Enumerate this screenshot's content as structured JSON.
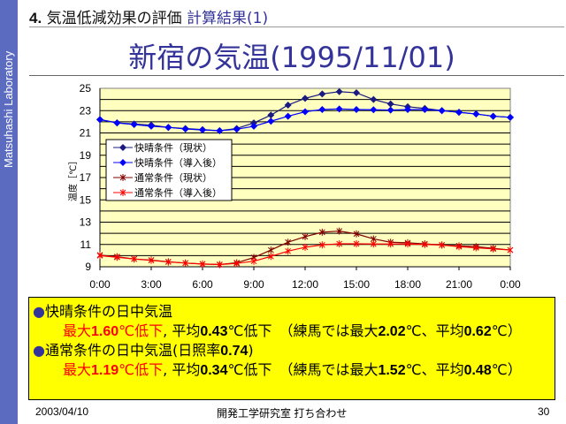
{
  "sidebar": {
    "label": "Matsuhashi Laboratory"
  },
  "header": {
    "number": "4.",
    "section": "気温低減効果の評価",
    "subsection": "計算結果(1)"
  },
  "chart_data": {
    "type": "line",
    "title": "新宿の気温(1995/11/01)",
    "xlabel": "",
    "ylabel": "温度［℃］",
    "ylim": [
      9,
      25
    ],
    "yticks": [
      9,
      11,
      13,
      15,
      17,
      19,
      21,
      23,
      25
    ],
    "xticks": [
      "0:00",
      "3:00",
      "6:00",
      "9:00",
      "12:00",
      "15:00",
      "18:00",
      "21:00",
      "0:00"
    ],
    "x_hours": [
      0,
      1,
      2,
      3,
      4,
      5,
      6,
      7,
      8,
      9,
      10,
      11,
      12,
      13,
      14,
      15,
      16,
      17,
      18,
      19,
      20,
      21,
      22,
      23,
      24
    ],
    "grid": true,
    "legend": "left-middle",
    "series": [
      {
        "name": "快晴条件（現状）",
        "color": "#1a1a80",
        "marker": "diamond",
        "values": [
          22.2,
          21.9,
          21.8,
          21.7,
          21.5,
          21.4,
          21.3,
          21.2,
          21.4,
          21.9,
          22.6,
          23.5,
          24.1,
          24.5,
          24.7,
          24.6,
          24.0,
          23.6,
          23.35,
          23.2,
          23.0,
          22.85,
          22.7,
          22.5,
          22.4
        ]
      },
      {
        "name": "快晴条件（導入後）",
        "color": "#0000ff",
        "marker": "diamond",
        "values": [
          22.2,
          21.9,
          21.75,
          21.6,
          21.5,
          21.35,
          21.27,
          21.2,
          21.33,
          21.6,
          22.05,
          22.5,
          22.9,
          23.1,
          23.15,
          23.1,
          23.08,
          23.05,
          23.1,
          23.1,
          23.0,
          22.85,
          22.7,
          22.5,
          22.4
        ]
      },
      {
        "name": "通常条件（現状）",
        "color": "#800000",
        "marker": "star",
        "values": [
          10.05,
          9.9,
          9.7,
          9.6,
          9.45,
          9.33,
          9.25,
          9.2,
          9.36,
          9.83,
          10.5,
          11.2,
          11.7,
          12.1,
          12.2,
          11.95,
          11.5,
          11.2,
          11.15,
          11.05,
          10.95,
          10.87,
          10.8,
          10.66,
          10.5
        ]
      },
      {
        "name": "通常条件（導入後）",
        "color": "#ff0000",
        "marker": "star",
        "values": [
          10.0,
          9.85,
          9.7,
          9.57,
          9.43,
          9.33,
          9.25,
          9.2,
          9.3,
          9.5,
          9.93,
          10.4,
          10.75,
          10.96,
          11.06,
          11.06,
          11.04,
          11.04,
          11.04,
          11.0,
          10.95,
          10.8,
          10.7,
          10.6,
          10.5
        ]
      }
    ]
  },
  "summary": {
    "items": [
      {
        "bullet": "●",
        "title": "快晴条件の日中気温",
        "max_a": "最大",
        "max_v": "1.60",
        "max_b": "℃低下",
        "sep": ", 平均",
        "avg_v": "0.43",
        "avg_b": "℃低下　（練馬では最大",
        "ref_max": "2.02",
        "ref_mid": "℃、平均",
        "ref_avg": "0.62",
        "ref_end": "℃）"
      },
      {
        "bullet": "●",
        "title": "通常条件の日中気温(日照率",
        "ratio": "0.74",
        "title_end": ")",
        "max_a": "最大",
        "max_v": "1.19",
        "max_b": "℃低下",
        "sep": ", 平均",
        "avg_v": "0.34",
        "avg_b": "℃低下　（練馬では最大",
        "ref_max": "1.52",
        "ref_mid": "℃、平均",
        "ref_avg": "0.48",
        "ref_end": "℃）"
      }
    ]
  },
  "footer": {
    "date": "2003/04/10",
    "center": "開発工学研究室 打ち合わせ",
    "page": "30"
  }
}
